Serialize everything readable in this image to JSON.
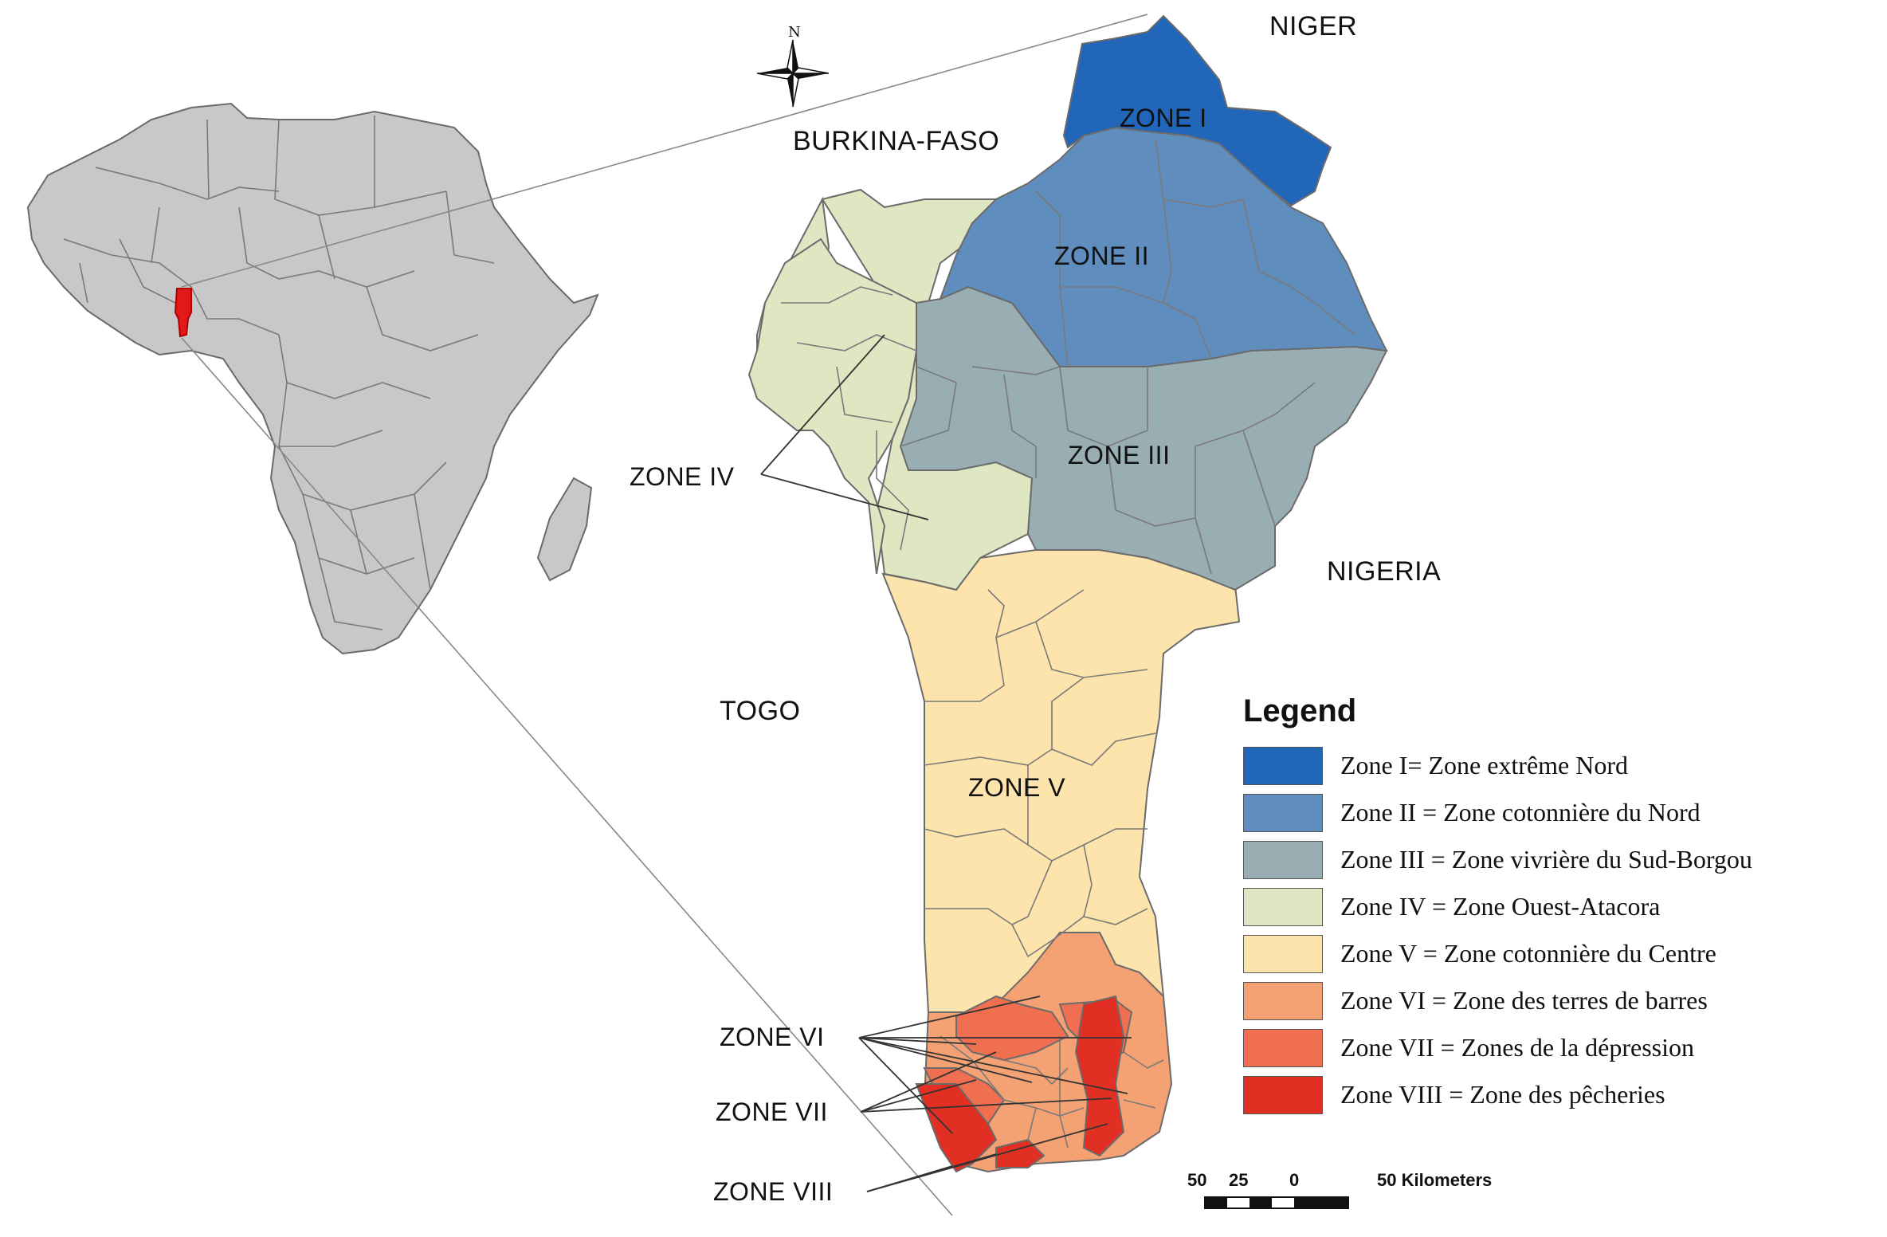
{
  "countries": {
    "niger": "NIGER",
    "burkina": "BURKINA-FASO",
    "nigeria": "NIGERIA",
    "togo": "TOGO"
  },
  "north_arrow": {
    "letter": "N",
    "icon": "compass-rose-icon"
  },
  "zone_labels": {
    "z1": "ZONE I",
    "z2": "ZONE II",
    "z3": "ZONE III",
    "z4": "ZONE IV",
    "z5": "ZONE V",
    "z6": "ZONE VI",
    "z7": "ZONE VII",
    "z8": "ZONE VIII"
  },
  "colors": {
    "z1": "#2166b8",
    "z2": "#5f8dbd",
    "z3": "#98aeb3",
    "z4": "#dfe7c2",
    "z5": "#fde3ac",
    "z6": "#f4a173",
    "z7": "#ef6f50",
    "z8": "#e12f23",
    "africa": "#c8c8c8",
    "highlight": "#e01919"
  },
  "legend": {
    "title": "Legend",
    "items": [
      {
        "label": "Zone I= Zone extrême Nord",
        "color": "#2166b8"
      },
      {
        "label": "Zone II = Zone cotonnière du Nord",
        "color": "#5f8dbd"
      },
      {
        "label": "Zone III = Zone vivrière du Sud-Borgou",
        "color": "#98aeb3"
      },
      {
        "label": "Zone IV = Zone Ouest-Atacora",
        "color": "#dfe7c2"
      },
      {
        "label": "Zone V = Zone cotonnière du Centre",
        "color": "#fde3ac"
      },
      {
        "label": "Zone VI = Zone des terres de barres",
        "color": "#f4a173"
      },
      {
        "label": "Zone VII = Zones de la dépression",
        "color": "#ef6f50"
      },
      {
        "label": "Zone VIII = Zone des pêcheries",
        "color": "#e12f23"
      }
    ]
  },
  "scale_bar": {
    "ticks": [
      "50",
      "25",
      "0",
      "50 Kilometers"
    ]
  }
}
